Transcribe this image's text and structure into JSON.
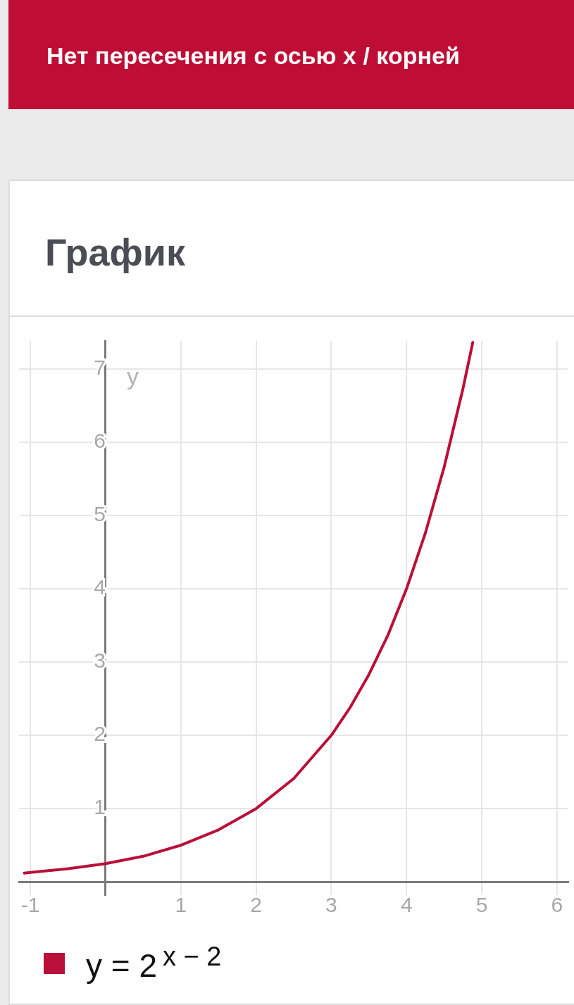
{
  "chart_data": {
    "type": "line",
    "title": "График",
    "ylabel": "y",
    "annotations": [
      "Нет пересечения с осью x / корней"
    ],
    "x": [
      -1.08,
      -1,
      -0.5,
      0,
      0.5,
      1,
      1.5,
      2,
      2.5,
      3,
      3.25,
      3.5,
      3.75,
      4,
      4.25,
      4.5,
      4.75,
      4.88
    ],
    "series": [
      {
        "name": "y = 2$^{x − 2}$",
        "color": "#b9103a",
        "values": [
          0.12,
          0.13,
          0.18,
          0.25,
          0.35,
          0.5,
          0.71,
          1,
          1.41,
          2,
          2.38,
          2.83,
          3.36,
          4,
          4.76,
          5.66,
          6.73,
          7.36
        ]
      }
    ],
    "xlim": [
      -1.15,
      6.15
    ],
    "ylim": [
      -0.18,
      7.38
    ],
    "xticks": [
      -1,
      1,
      2,
      3,
      4,
      5,
      6
    ],
    "yticks": [
      1,
      2,
      3,
      4,
      5,
      6,
      7
    ],
    "grid": true,
    "legend": "bottom",
    "marker": "none",
    "line_style": "solid"
  }
}
